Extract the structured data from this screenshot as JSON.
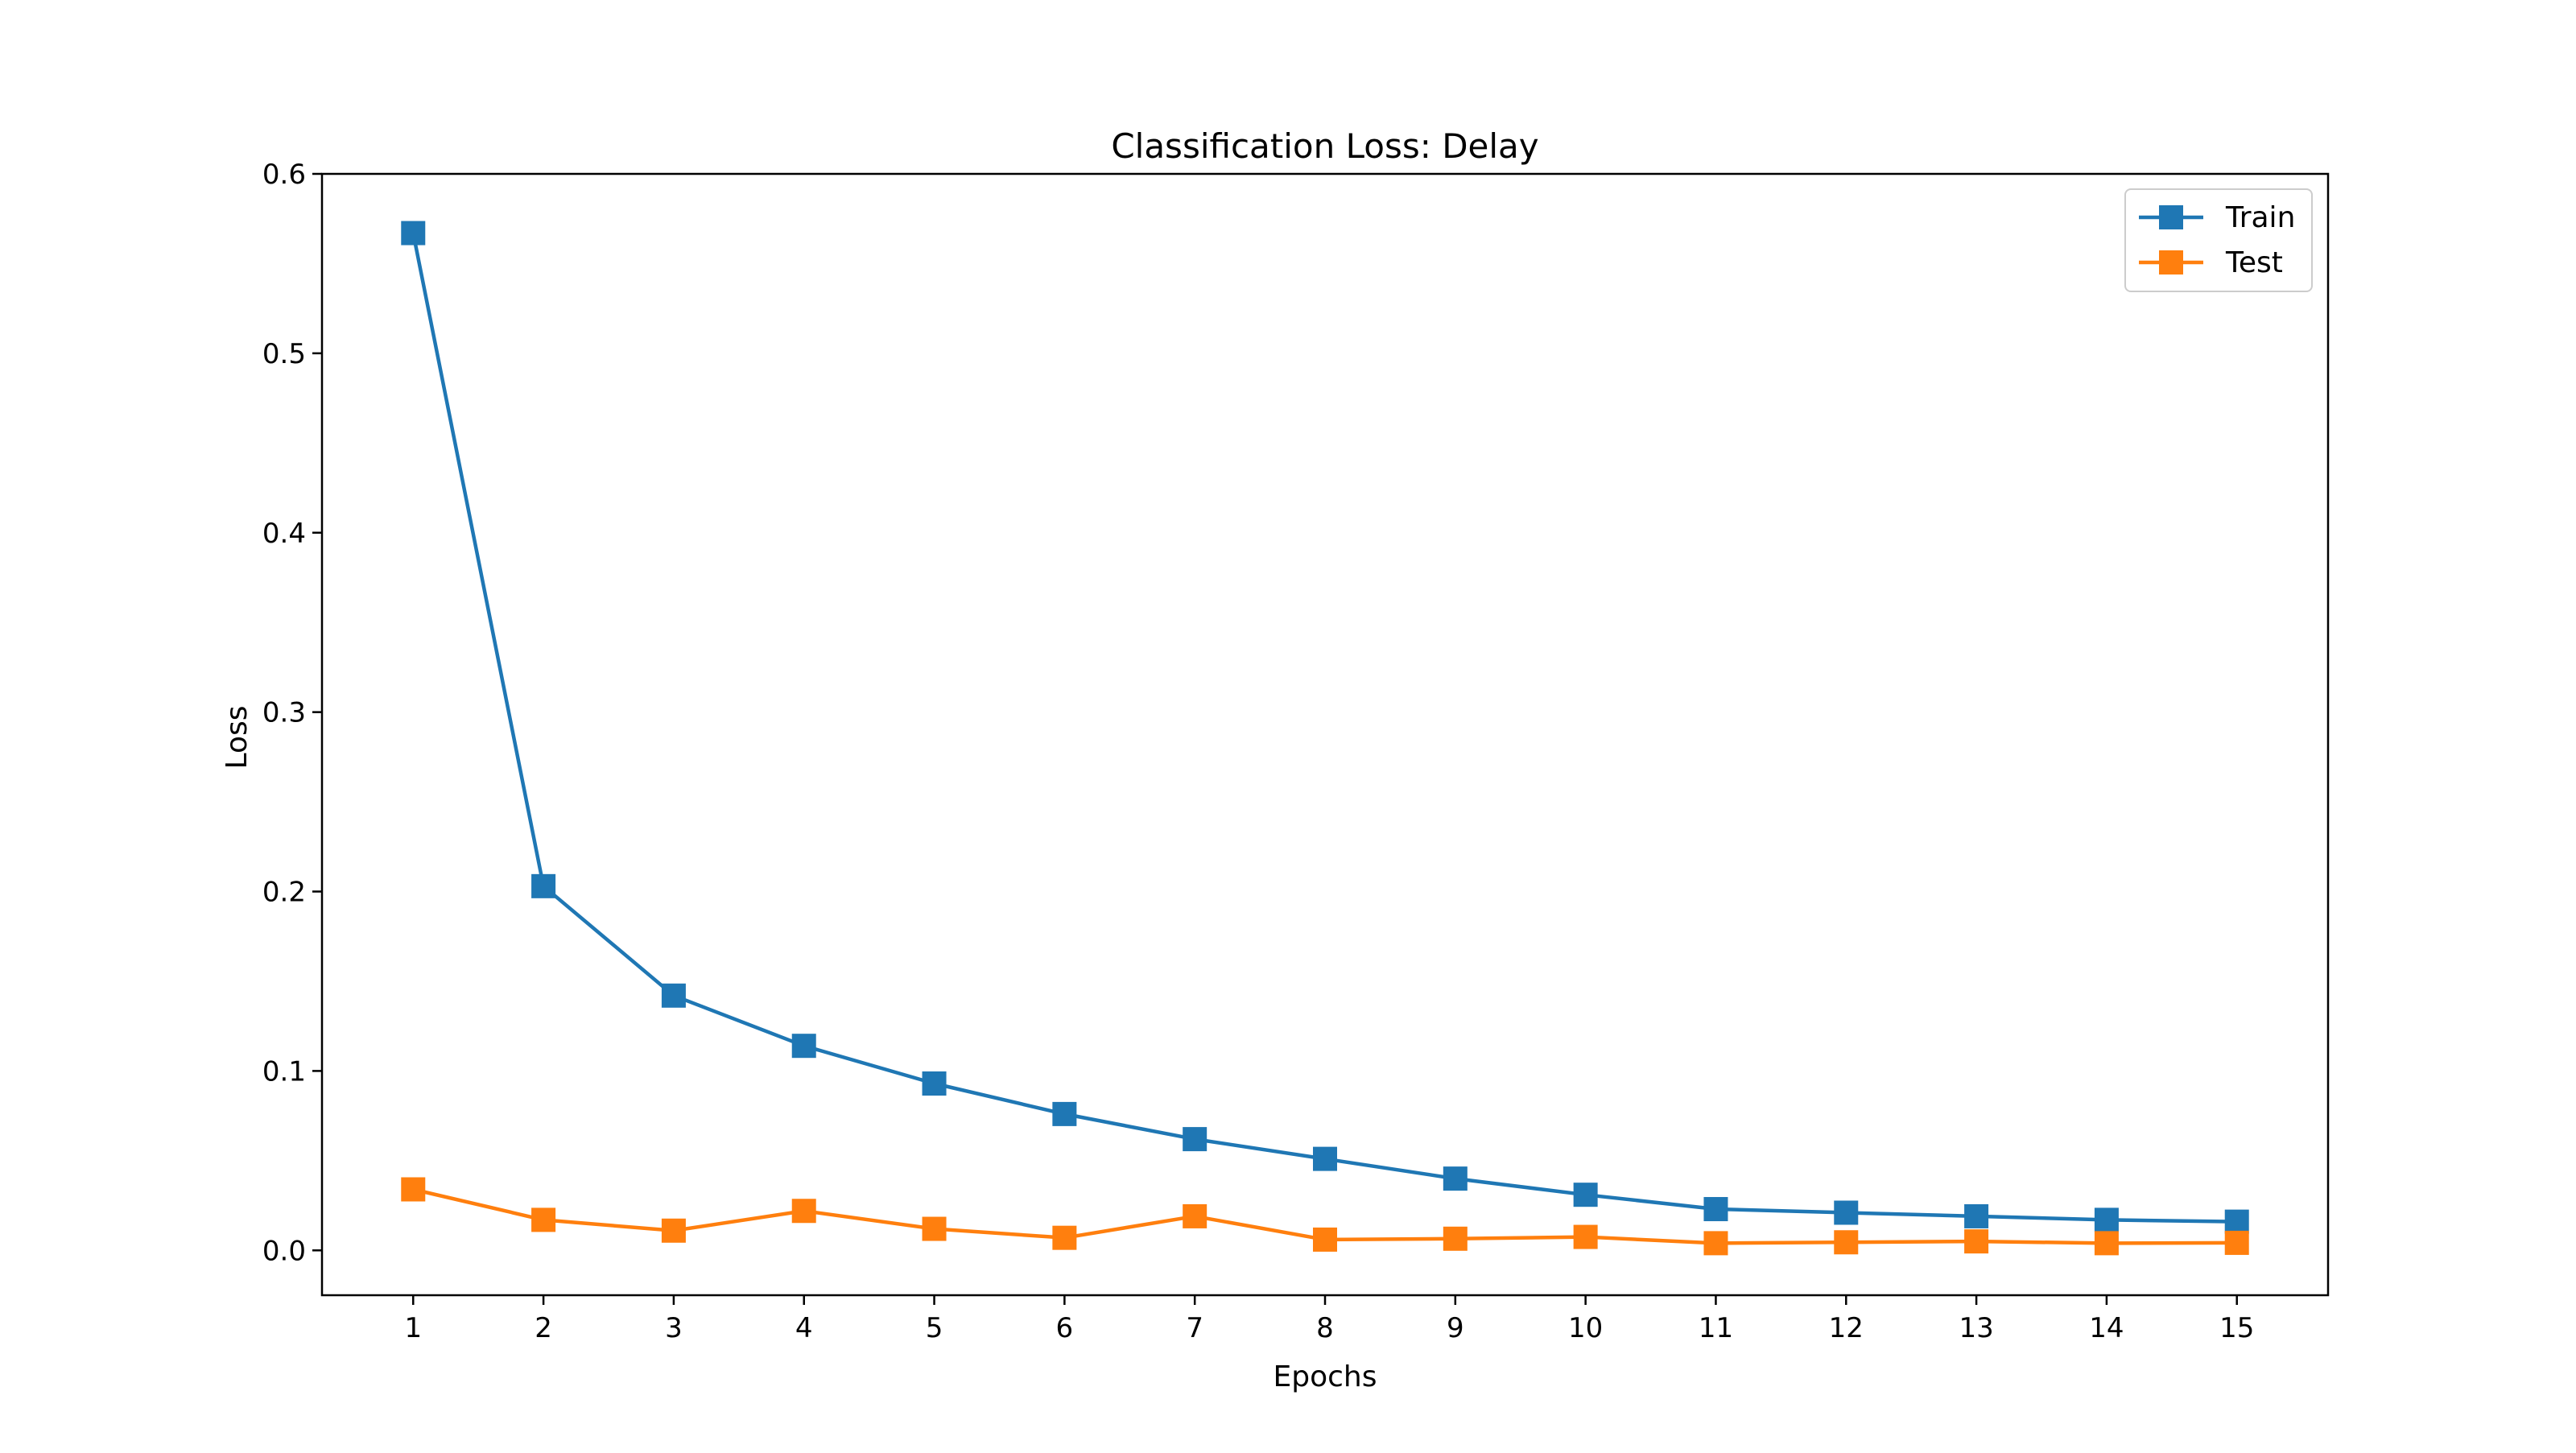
{
  "chart_data": {
    "type": "line",
    "title": "Classification Loss: Delay",
    "xlabel": "Epochs",
    "ylabel": "Loss",
    "x": [
      1,
      2,
      3,
      4,
      5,
      6,
      7,
      8,
      9,
      10,
      11,
      12,
      13,
      14,
      15
    ],
    "xlim": [
      0.3,
      15.7
    ],
    "ylim": [
      -0.025,
      0.6
    ],
    "y_ticks": [
      0.0,
      0.1,
      0.2,
      0.3,
      0.4,
      0.5,
      0.6
    ],
    "y_tick_labels": [
      "0.0",
      "0.1",
      "0.2",
      "0.3",
      "0.4",
      "0.5",
      "0.6"
    ],
    "x_tick_labels": [
      "1",
      "2",
      "3",
      "4",
      "5",
      "6",
      "7",
      "8",
      "9",
      "10",
      "11",
      "12",
      "13",
      "14",
      "15"
    ],
    "grid": false,
    "legend_position": "top-right",
    "marker": "square",
    "series": [
      {
        "name": "Train",
        "color": "#1f77b4",
        "values": [
          0.567,
          0.203,
          0.142,
          0.114,
          0.093,
          0.076,
          0.062,
          0.051,
          0.04,
          0.031,
          0.023,
          0.021,
          0.019,
          0.017,
          0.016
        ]
      },
      {
        "name": "Test",
        "color": "#ff7f0e",
        "values": [
          0.034,
          0.017,
          0.011,
          0.022,
          0.012,
          0.007,
          0.019,
          0.006,
          0.0065,
          0.0075,
          0.004,
          0.0045,
          0.005,
          0.004,
          0.0042
        ]
      }
    ]
  }
}
